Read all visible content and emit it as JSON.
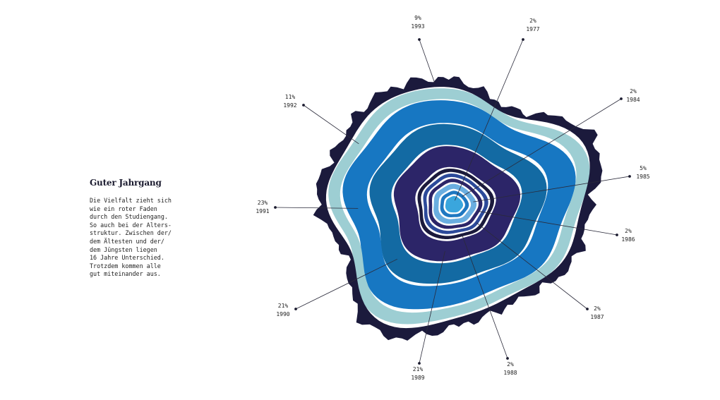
{
  "article": {
    "headline": "Guter Jahrgang",
    "body_lines": [
      "Die Vielfalt zieht sich",
      "wie ein roter Faden",
      "durch den Studiengang.",
      "So auch bei der Alters-",
      "struktur. Zwischen der/",
      "dem Ältesten und der/",
      "dem Jüngsten liegen",
      "16 Jahre Unterschied.",
      "Trotzdem kommen alle",
      "gut miteinander aus."
    ]
  },
  "chart_data": {
    "type": "tree-ring",
    "title": "Guter Jahrgang",
    "unit": "%",
    "categories": [
      "1977",
      "1984",
      "1985",
      "1986",
      "1987",
      "1988",
      "1989",
      "1990",
      "1991",
      "1992",
      "1993"
    ],
    "values": [
      2,
      2,
      5,
      2,
      2,
      2,
      21,
      21,
      23,
      11,
      9
    ],
    "rings": [
      {
        "year": "1977",
        "value": 2,
        "color": "#3aa6dd"
      },
      {
        "year": "1984",
        "value": 2,
        "color": "#1f78c1"
      },
      {
        "year": "1985",
        "value": 5,
        "color": "#6aaee0"
      },
      {
        "year": "1986",
        "value": 2,
        "color": "#2c2568"
      },
      {
        "year": "1987",
        "value": 2,
        "color": "#2c4a9a"
      },
      {
        "year": "1988",
        "value": 2,
        "color": "#1b1a3c"
      },
      {
        "year": "1989",
        "value": 21,
        "color": "#2c2568"
      },
      {
        "year": "1990",
        "value": 21,
        "color": "#136aa3"
      },
      {
        "year": "1991",
        "value": 23,
        "color": "#1777c2"
      },
      {
        "year": "1992",
        "value": 11,
        "color": "#9dced3"
      },
      {
        "year": "1993",
        "value": 9,
        "color": "#1b1a3c"
      }
    ],
    "labels": [
      {
        "pct": "2%",
        "year": "1977"
      },
      {
        "pct": "2%",
        "year": "1984"
      },
      {
        "pct": "5%",
        "year": "1985"
      },
      {
        "pct": "2%",
        "year": "1986"
      },
      {
        "pct": "2%",
        "year": "1987"
      },
      {
        "pct": "2%",
        "year": "1988"
      },
      {
        "pct": "21%",
        "year": "1989"
      },
      {
        "pct": "21%",
        "year": "1990"
      },
      {
        "pct": "23%",
        "year": "1991"
      },
      {
        "pct": "11%",
        "year": "1992"
      },
      {
        "pct": "9%",
        "year": "1993"
      }
    ]
  }
}
